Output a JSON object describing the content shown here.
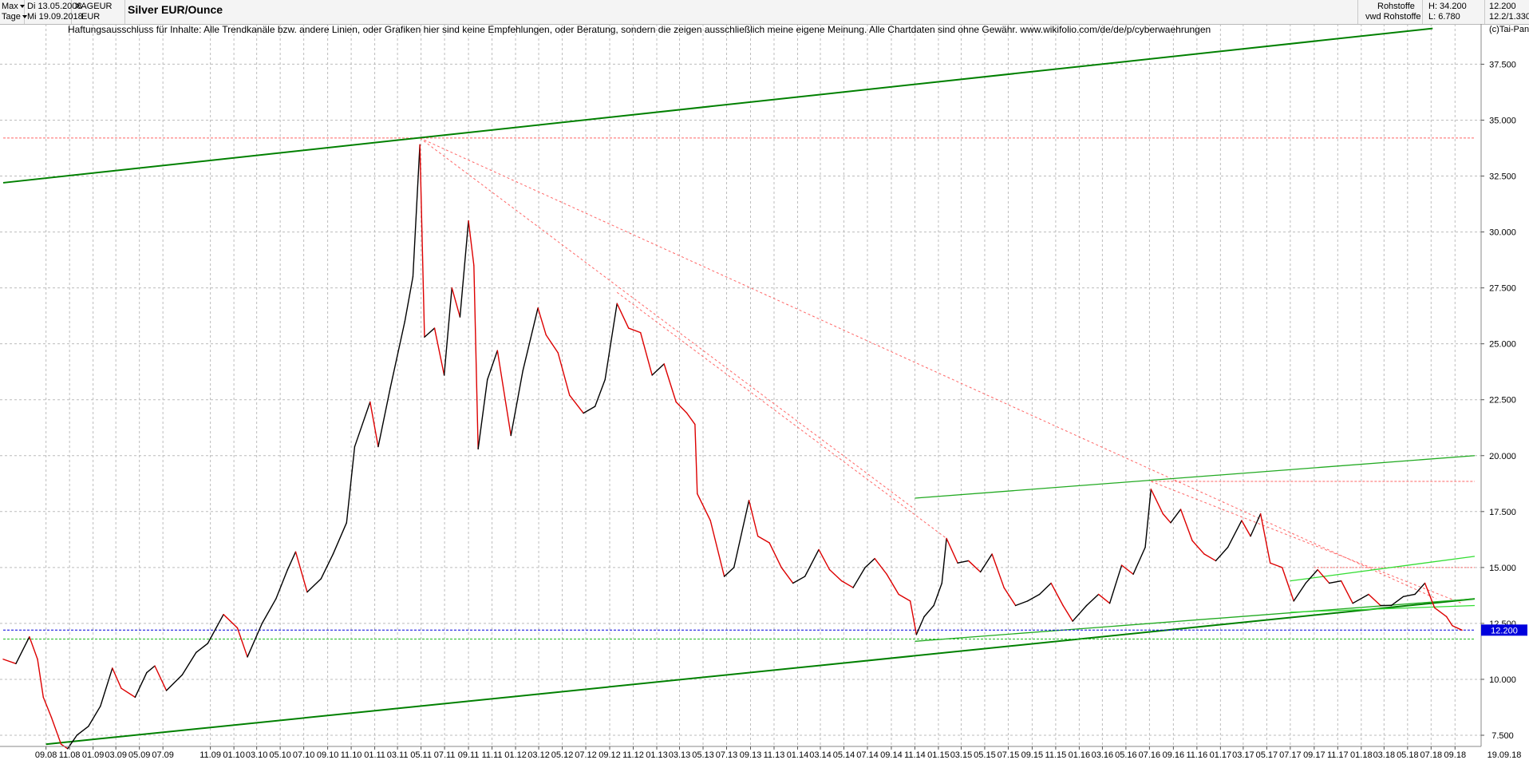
{
  "toolbar": {
    "period_label": "Max",
    "interval_label": "Tage",
    "date_from": "Di 13.05.2008",
    "date_to": "Mi 19.09.2018",
    "symbol": "XAGEUR",
    "currency": "EUR",
    "title": "Silver EUR/Ounce",
    "category": "Rohstoffe",
    "source": "vwd Rohstoffe",
    "high_label": "H: 34.200",
    "low_label": "L: 6.780",
    "last_value": "12.200",
    "last_detail": "12.2/1.330"
  },
  "disclaimer": "Haftungsausschluss für Inhalte: Alle Trendkanäle bzw. andere Linien, oder Grafiken hier sind keine Empfehlungen, oder Beratung, sondern die zeigen ausschließlich meine eigene Meinung. Alle Chartdaten sind ohne Gewähr.  www.wikifolio.com/de/de/p/cyberwaehrungen",
  "copyright": "(c)Tai-Pan",
  "colors": {
    "price_line": "#000000",
    "price_fall": "#dd0000",
    "trend_major": "#008000",
    "trend_minor": "#22aa22",
    "trend_light": "#33dd33",
    "resistance": "#ff6666",
    "current_level": "#0000dd",
    "support_level": "#22bb22",
    "grid": "#bcbcbc"
  },
  "chart_data": {
    "type": "line",
    "title": "Silver EUR/Ounce",
    "y_axis_side": "right",
    "ylim": [
      7.0,
      39.3
    ],
    "yticks": [
      "7.500",
      "10.000",
      "12.500",
      "15.000",
      "17.500",
      "20.000",
      "22.500",
      "25.000",
      "27.500",
      "30.000",
      "32.500",
      "35.000",
      "37.500"
    ],
    "ytick_values": [
      7.5,
      10,
      12.5,
      15,
      17.5,
      20,
      22.5,
      25,
      27.5,
      30,
      32.5,
      35,
      37.5
    ],
    "x_range": [
      "2008-05-13",
      "2018-09-19"
    ],
    "xticks": [
      "09.08",
      "11.08",
      "01.09",
      "03.09",
      "05.09",
      "07.09",
      "11.09",
      "01.10",
      "03.10",
      "05.10",
      "07.10",
      "09.10",
      "11.10",
      "01.11",
      "03.11",
      "05.11",
      "07.11",
      "09.11",
      "11.11",
      "01.12",
      "03.12",
      "05.12",
      "07.12",
      "09.12",
      "11.12",
      "01.13",
      "03.13",
      "05.13",
      "07.13",
      "09.13",
      "11.13",
      "01.14",
      "03.14",
      "05.14",
      "07.14",
      "09.14",
      "11.14",
      "01.15",
      "03.15",
      "05.15",
      "07.15",
      "09.15",
      "11.15",
      "01.16",
      "03.16",
      "05.16",
      "07.16",
      "09.16",
      "11.16",
      "01.17",
      "03.17",
      "05.17",
      "07.17",
      "09.17",
      "11.17",
      "01.18",
      "03.18",
      "05.18",
      "07.18",
      "09.18"
    ],
    "xtick_dates": [
      "2008-09-01",
      "2008-11-01",
      "2009-01-01",
      "2009-03-01",
      "2009-05-01",
      "2009-07-01",
      "2009-11-01",
      "2010-01-01",
      "2010-03-01",
      "2010-05-01",
      "2010-07-01",
      "2010-09-01",
      "2010-11-01",
      "2011-01-01",
      "2011-03-01",
      "2011-05-01",
      "2011-07-01",
      "2011-09-01",
      "2011-11-01",
      "2012-01-01",
      "2012-03-01",
      "2012-05-01",
      "2012-07-01",
      "2012-09-01",
      "2012-11-01",
      "2013-01-01",
      "2013-03-01",
      "2013-05-01",
      "2013-07-01",
      "2013-09-01",
      "2013-11-01",
      "2014-01-01",
      "2014-03-01",
      "2014-05-01",
      "2014-07-01",
      "2014-09-01",
      "2014-11-01",
      "2015-01-01",
      "2015-03-01",
      "2015-05-01",
      "2015-07-01",
      "2015-09-01",
      "2015-11-01",
      "2016-01-01",
      "2016-03-01",
      "2016-05-01",
      "2016-07-01",
      "2016-09-01",
      "2016-11-01",
      "2017-01-01",
      "2017-03-01",
      "2017-05-01",
      "2017-07-01",
      "2017-09-01",
      "2017-11-01",
      "2018-01-01",
      "2018-03-01",
      "2018-05-01",
      "2018-07-01",
      "2018-09-01"
    ],
    "x_end_label": "19.09.18",
    "series": [
      {
        "points": [
          [
            "2008-05-13",
            10.9
          ],
          [
            "2008-06-15",
            10.7
          ],
          [
            "2008-07-20",
            11.9
          ],
          [
            "2008-08-10",
            10.9
          ],
          [
            "2008-08-25",
            9.2
          ],
          [
            "2008-09-15",
            8.3
          ],
          [
            "2008-10-10",
            7.1
          ],
          [
            "2008-10-27",
            6.9
          ],
          [
            "2008-11-20",
            7.5
          ],
          [
            "2008-12-20",
            7.9
          ],
          [
            "2009-01-20",
            8.8
          ],
          [
            "2009-02-20",
            10.5
          ],
          [
            "2009-03-15",
            9.6
          ],
          [
            "2009-04-20",
            9.2
          ],
          [
            "2009-05-20",
            10.3
          ],
          [
            "2009-06-10",
            10.6
          ],
          [
            "2009-07-10",
            9.5
          ],
          [
            "2009-08-20",
            10.2
          ],
          [
            "2009-09-25",
            11.2
          ],
          [
            "2009-10-25",
            11.6
          ],
          [
            "2009-12-05",
            12.9
          ],
          [
            "2010-01-10",
            12.3
          ],
          [
            "2010-02-05",
            11.0
          ],
          [
            "2010-03-15",
            12.5
          ],
          [
            "2010-04-20",
            13.6
          ],
          [
            "2010-05-20",
            14.9
          ],
          [
            "2010-06-10",
            15.7
          ],
          [
            "2010-07-10",
            13.9
          ],
          [
            "2010-08-15",
            14.5
          ],
          [
            "2010-09-15",
            15.6
          ],
          [
            "2010-10-20",
            17.0
          ],
          [
            "2010-11-10",
            20.4
          ],
          [
            "2010-12-20",
            22.4
          ],
          [
            "2011-01-10",
            20.4
          ],
          [
            "2011-02-10",
            23.0
          ],
          [
            "2011-03-20",
            26.0
          ],
          [
            "2011-04-10",
            28.0
          ],
          [
            "2011-04-28",
            33.9
          ],
          [
            "2011-05-10",
            25.3
          ],
          [
            "2011-06-05",
            25.7
          ],
          [
            "2011-06-30",
            23.6
          ],
          [
            "2011-07-20",
            27.5
          ],
          [
            "2011-08-10",
            26.2
          ],
          [
            "2011-09-01",
            30.5
          ],
          [
            "2011-09-15",
            28.5
          ],
          [
            "2011-09-26",
            20.3
          ],
          [
            "2011-10-20",
            23.4
          ],
          [
            "2011-11-15",
            24.7
          ],
          [
            "2011-12-20",
            20.9
          ],
          [
            "2012-01-20",
            23.8
          ],
          [
            "2012-02-28",
            26.6
          ],
          [
            "2012-03-20",
            25.4
          ],
          [
            "2012-04-20",
            24.6
          ],
          [
            "2012-05-20",
            22.7
          ],
          [
            "2012-06-25",
            21.9
          ],
          [
            "2012-07-25",
            22.2
          ],
          [
            "2012-08-20",
            23.4
          ],
          [
            "2012-09-20",
            26.8
          ],
          [
            "2012-10-20",
            25.7
          ],
          [
            "2012-11-20",
            25.5
          ],
          [
            "2012-12-20",
            23.6
          ],
          [
            "2013-01-20",
            24.1
          ],
          [
            "2013-02-20",
            22.4
          ],
          [
            "2013-03-20",
            21.9
          ],
          [
            "2013-04-10",
            21.4
          ],
          [
            "2013-04-16",
            18.3
          ],
          [
            "2013-05-20",
            17.1
          ],
          [
            "2013-06-25",
            14.6
          ],
          [
            "2013-07-20",
            15.0
          ],
          [
            "2013-08-28",
            18.0
          ],
          [
            "2013-09-20",
            16.4
          ],
          [
            "2013-10-20",
            16.1
          ],
          [
            "2013-11-20",
            15.0
          ],
          [
            "2013-12-20",
            14.3
          ],
          [
            "2014-01-20",
            14.6
          ],
          [
            "2014-02-25",
            15.8
          ],
          [
            "2014-03-25",
            14.9
          ],
          [
            "2014-04-25",
            14.4
          ],
          [
            "2014-05-25",
            14.1
          ],
          [
            "2014-06-25",
            15.0
          ],
          [
            "2014-07-20",
            15.4
          ],
          [
            "2014-08-20",
            14.7
          ],
          [
            "2014-09-20",
            13.8
          ],
          [
            "2014-10-20",
            13.5
          ],
          [
            "2014-11-05",
            12.0
          ],
          [
            "2014-11-25",
            12.8
          ],
          [
            "2014-12-20",
            13.3
          ],
          [
            "2015-01-10",
            14.3
          ],
          [
            "2015-01-22",
            16.3
          ],
          [
            "2015-02-20",
            15.2
          ],
          [
            "2015-03-20",
            15.3
          ],
          [
            "2015-04-20",
            14.8
          ],
          [
            "2015-05-20",
            15.6
          ],
          [
            "2015-06-20",
            14.1
          ],
          [
            "2015-07-20",
            13.3
          ],
          [
            "2015-08-20",
            13.5
          ],
          [
            "2015-09-20",
            13.8
          ],
          [
            "2015-10-20",
            14.3
          ],
          [
            "2015-11-20",
            13.3
          ],
          [
            "2015-12-15",
            12.6
          ],
          [
            "2016-01-20",
            13.3
          ],
          [
            "2016-02-20",
            13.8
          ],
          [
            "2016-03-20",
            13.4
          ],
          [
            "2016-04-20",
            15.1
          ],
          [
            "2016-05-20",
            14.7
          ],
          [
            "2016-06-20",
            15.9
          ],
          [
            "2016-07-05",
            18.5
          ],
          [
            "2016-08-05",
            17.4
          ],
          [
            "2016-08-25",
            17.0
          ],
          [
            "2016-09-20",
            17.6
          ],
          [
            "2016-10-20",
            16.2
          ],
          [
            "2016-11-20",
            15.6
          ],
          [
            "2016-12-20",
            15.3
          ],
          [
            "2017-01-20",
            15.9
          ],
          [
            "2017-02-25",
            17.1
          ],
          [
            "2017-03-20",
            16.4
          ],
          [
            "2017-04-15",
            17.4
          ],
          [
            "2017-05-10",
            15.2
          ],
          [
            "2017-06-10",
            15.0
          ],
          [
            "2017-07-10",
            13.5
          ],
          [
            "2017-08-10",
            14.3
          ],
          [
            "2017-09-10",
            14.9
          ],
          [
            "2017-10-10",
            14.3
          ],
          [
            "2017-11-10",
            14.4
          ],
          [
            "2017-12-10",
            13.4
          ],
          [
            "2018-01-20",
            13.8
          ],
          [
            "2018-02-20",
            13.3
          ],
          [
            "2018-03-20",
            13.3
          ],
          [
            "2018-04-20",
            13.7
          ],
          [
            "2018-05-20",
            13.8
          ],
          [
            "2018-06-15",
            14.3
          ],
          [
            "2018-07-10",
            13.2
          ],
          [
            "2018-08-10",
            12.8
          ],
          [
            "2018-08-25",
            12.4
          ],
          [
            "2018-09-19",
            12.2
          ]
        ]
      }
    ],
    "current_value_label": "12.200"
  }
}
